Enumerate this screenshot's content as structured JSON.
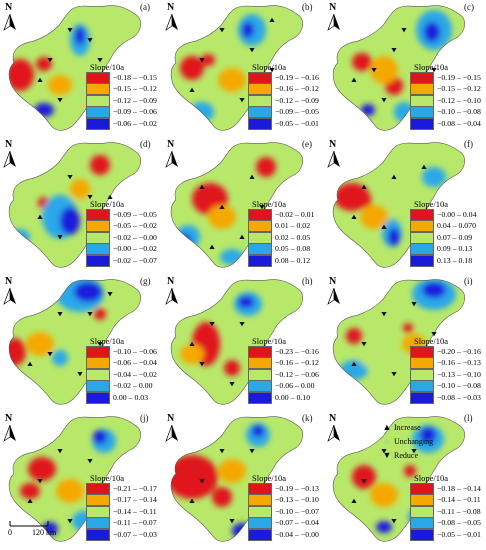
{
  "panels": [
    {
      "id": "(a)",
      "legend_title": "Slope/10a",
      "classes": [
        "−0.18 – −0.15",
        "−0.15 – −0.12",
        "−0.12 – −0.09",
        "−0.09 – −0.06",
        "−0.06 – −0.02"
      ]
    },
    {
      "id": "(b)",
      "legend_title": "Slope/10a",
      "classes": [
        "−0.19 – −0.16",
        "−0.16 – −0.12",
        "−0.12 – −0.09",
        "−0.09 – −0.05",
        "−0.05 – −0.01"
      ]
    },
    {
      "id": "(c)",
      "legend_title": "Slope/10a",
      "classes": [
        "−0.19 – −0.15",
        "−0.15 – −0.12",
        "−0.12 – −0.10",
        "−0.10 – −0.08",
        "−0.08 – −0.04"
      ]
    },
    {
      "id": "(d)",
      "legend_title": "Slope/10a",
      "classes": [
        "−0.09 – −0.05",
        "−0.05 – −0.02",
        "−0.02 – −0.00",
        "−0.00 – −0.02",
        "−0.02 – −0.07"
      ]
    },
    {
      "id": "(e)",
      "legend_title": "Slope/10a",
      "classes": [
        "−0.02 – 0.01",
        "0.01 – 0.02",
        "0.02 – 0.05",
        "0.05 – 0.08",
        "0.08 – 0.12"
      ]
    },
    {
      "id": "(f)",
      "legend_title": "Slope/10a",
      "classes": [
        "−0.00 – 0.04",
        "0.04 – 0.070",
        "0.07 – 0.09",
        "0.09 – 0.13",
        "0.13 – 0.18"
      ]
    },
    {
      "id": "(g)",
      "legend_title": "Slope/10a",
      "classes": [
        "−0.10 – −0.06",
        "−0.06 – −0.04",
        "−0.04 – −0.02",
        "−0.02 – 0.00",
        "0.00 – 0.03"
      ]
    },
    {
      "id": "(h)",
      "legend_title": "Slope/10a",
      "classes": [
        "−0.23 – −0.16",
        "−0.16 – −0.12",
        "−0.12 – −0.06",
        "−0.06 – 0.00",
        "0.00 – 0.10"
      ]
    },
    {
      "id": "(i)",
      "legend_title": "Slope/10a",
      "classes": [
        "−0.20 – −0.16",
        "−0.16 – −0.13",
        "−0.13 – −0.10",
        "−0.10 – −0.08",
        "−0.08 – −0.03"
      ]
    },
    {
      "id": "(j)",
      "legend_title": "Slope/10a",
      "classes": [
        "−0.21 – −0.17",
        "−0.17 – −0.14",
        "−0.14 – −0.11",
        "−0.11 – −0.07",
        "−0.07 – −0.03"
      ]
    },
    {
      "id": "(k)",
      "legend_title": "Slope/10a",
      "classes": [
        "−0.19 – −0.13",
        "−0.13 – −0.10",
        "−0.10 – −0.07",
        "−0.07 – −0.04",
        "−0.04 – −0.00"
      ]
    },
    {
      "id": "(l)",
      "legend_title": "Slope/10a",
      "classes": [
        "−0.18 – −0.14",
        "−0.14 – −0.11",
        "−0.11 – −0.08",
        "−0.08 – −0.05",
        "−0.05 – −0.01"
      ]
    }
  ],
  "class_colors": [
    "#e0141b",
    "#f5a800",
    "#b8e86a",
    "#29a8e8",
    "#1a1adb"
  ],
  "north_label": "N",
  "point_legend": {
    "increase": "Increase",
    "unchanging": "Unchanging",
    "reduce": "Reduce"
  },
  "scale_bar": {
    "start": "0",
    "end": "120 km"
  }
}
